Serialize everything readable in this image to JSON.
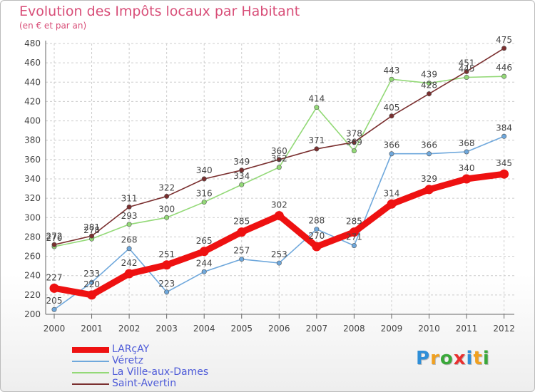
{
  "header": {
    "title": "Evolution des Impôts locaux par Habitant",
    "subtitle": "(en € et par an)"
  },
  "chart_data": {
    "type": "line",
    "title": "Evolution des Impôts locaux par Habitant",
    "subtitle": "(en € et par an)",
    "xlabel": "",
    "ylabel": "",
    "categories": [
      "2000",
      "2001",
      "2002",
      "2003",
      "2004",
      "2005",
      "2006",
      "2007",
      "2008",
      "2009",
      "2010",
      "2011",
      "2012"
    ],
    "ylim": [
      200,
      480
    ],
    "yticks": [
      200,
      220,
      240,
      260,
      280,
      300,
      320,
      340,
      360,
      380,
      400,
      420,
      440,
      460,
      480
    ],
    "grid": true,
    "legend_position": "bottom-left",
    "series": [
      {
        "name": "LARçAY",
        "color": "#ee1111",
        "emphasis": true,
        "values": [
          227,
          220,
          242,
          251,
          265,
          285,
          302,
          270,
          285,
          314,
          329,
          340,
          345
        ]
      },
      {
        "name": "Véretz",
        "color": "#6fa8dc",
        "emphasis": false,
        "values": [
          205,
          233,
          268,
          223,
          244,
          257,
          253,
          288,
          271,
          366,
          366,
          368,
          384
        ]
      },
      {
        "name": "La Ville-aux-Dames",
        "color": "#93d977",
        "emphasis": false,
        "values": [
          270,
          278,
          293,
          300,
          316,
          334,
          352,
          414,
          369,
          443,
          439,
          445,
          446
        ]
      },
      {
        "name": "Saint-Avertin",
        "color": "#7a2f2f",
        "emphasis": false,
        "values": [
          272,
          281,
          311,
          322,
          340,
          349,
          360,
          371,
          378,
          405,
          428,
          451,
          475
        ]
      }
    ]
  },
  "logo": {
    "letters": [
      {
        "ch": "P",
        "color": "#2f8fd8"
      },
      {
        "ch": "r",
        "color": "#f0a020"
      },
      {
        "ch": "o",
        "color": "#3aa83a"
      },
      {
        "ch": "x",
        "color": "#e83030"
      },
      {
        "ch": "i",
        "color": "#2f8fd8"
      },
      {
        "ch": "t",
        "color": "#f0a020"
      },
      {
        "ch": "i",
        "color": "#3aa83a"
      }
    ]
  }
}
